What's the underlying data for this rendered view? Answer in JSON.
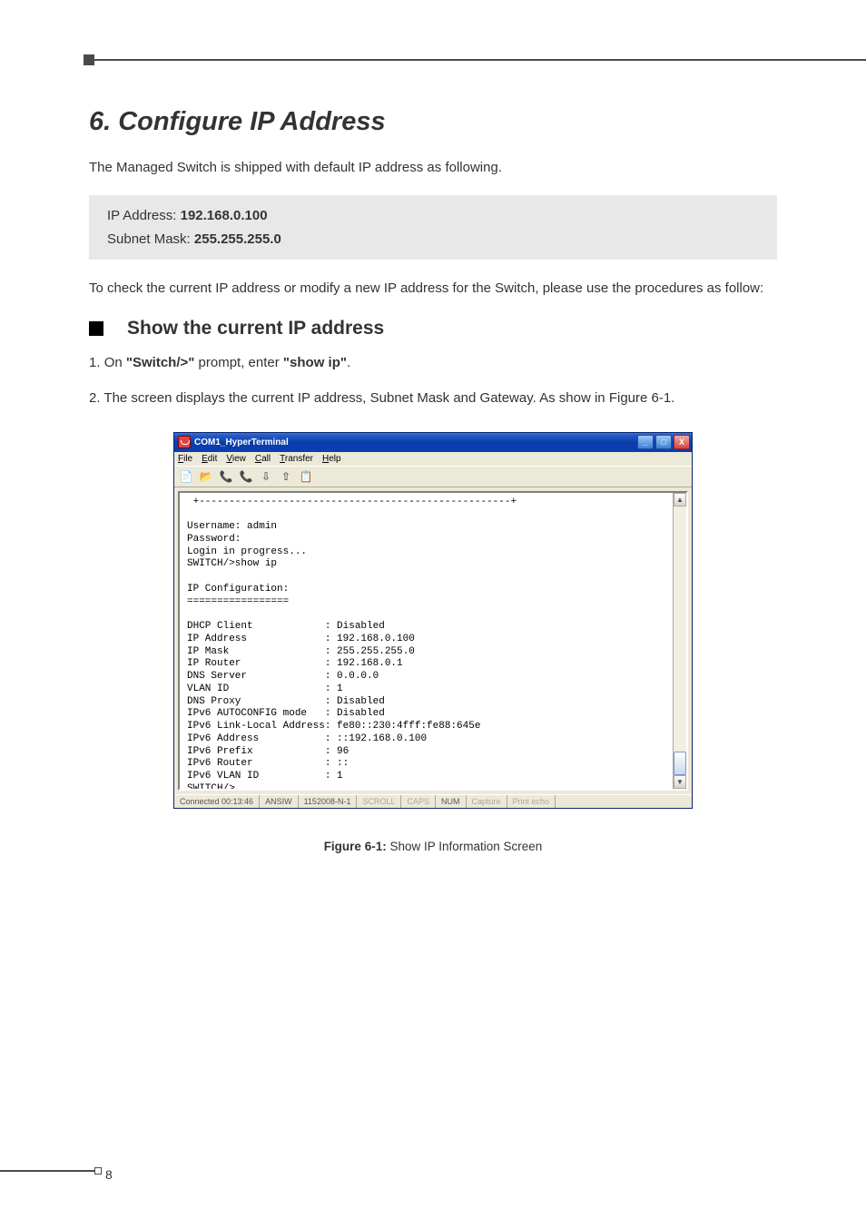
{
  "page": {
    "number": "8"
  },
  "section": {
    "title": "6. Configure IP Address",
    "intro": "The Managed Switch is shipped with default IP address as following.",
    "ip_box": {
      "ip_label": "IP Address: ",
      "ip_value": "192.168.0.100",
      "mask_label": "Subnet Mask: ",
      "mask_value": "255.255.255.0"
    },
    "intro2": "To check the current IP address or modify a new IP address for the Switch, please use the procedures as follow:",
    "subhead": "Show the current IP address",
    "steps": {
      "s1_a": "On ",
      "s1_b": "\"Switch/>\"",
      "s1_c": " prompt, enter ",
      "s1_d": "\"show ip\"",
      "s1_e": ".",
      "s2": "The screen displays the current IP address, Subnet Mask and Gateway. As show in Figure 6-1."
    }
  },
  "terminal": {
    "title": "COM1_HyperTerminal",
    "menus": {
      "file": "File",
      "edit": "Edit",
      "view": "View",
      "call": "Call",
      "transfer": "Transfer",
      "help": "Help"
    },
    "toolbar_icons": [
      "📄",
      "📂",
      "📞",
      "📞",
      "⇩",
      "⇧",
      "📋"
    ],
    "content": " +----------------------------------------------------+\n\nUsername: admin\nPassword:\nLogin in progress...\nSWITCH/>show ip\n\nIP Configuration:\n=================\n\nDHCP Client            : Disabled\nIP Address             : 192.168.0.100\nIP Mask                : 255.255.255.0\nIP Router              : 192.168.0.1\nDNS Server             : 0.0.0.0\nVLAN ID                : 1\nDNS Proxy              : Disabled\nIPv6 AUTOCONFIG mode   : Disabled\nIPv6 Link-Local Address: fe80::230:4fff:fe88:645e\nIPv6 Address           : ::192.168.0.100\nIPv6 Prefix            : 96\nIPv6 Router            : ::\nIPv6 VLAN ID           : 1\nSWITCH/>",
    "status": {
      "time": "Connected 00:13:46",
      "emul": "ANSIW",
      "conn": "1152008-N-1",
      "scroll": "SCROLL",
      "caps": "CAPS",
      "num": "NUM",
      "capture": "Capture",
      "echo": "Print echo"
    },
    "winbtns": {
      "min": "_",
      "max": "□",
      "close": "X"
    },
    "scroll_arrows": {
      "up": "▲",
      "down": "▼"
    }
  },
  "figure": {
    "label": "Figure 6-1:",
    "caption": "  Show IP Information Screen"
  },
  "colors": {
    "xp_blue": "#0a3dad",
    "xp_close": "#d6453e",
    "box_gray": "#e8e8e8",
    "text": "#333333"
  }
}
